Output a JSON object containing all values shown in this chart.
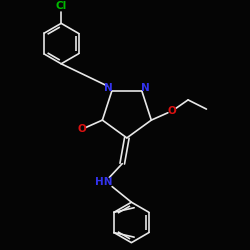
{
  "background": "#050505",
  "bond_color": "#e8e8e8",
  "bond_width": 1.2,
  "N_color": "#3333ee",
  "O_color": "#dd1111",
  "Cl_color": "#00bb00",
  "font_size": 7.5,
  "figsize": [
    2.5,
    2.5
  ],
  "dpi": 100,
  "xlim": [
    -1.35,
    1.35
  ],
  "ylim": [
    -1.45,
    1.25
  ]
}
